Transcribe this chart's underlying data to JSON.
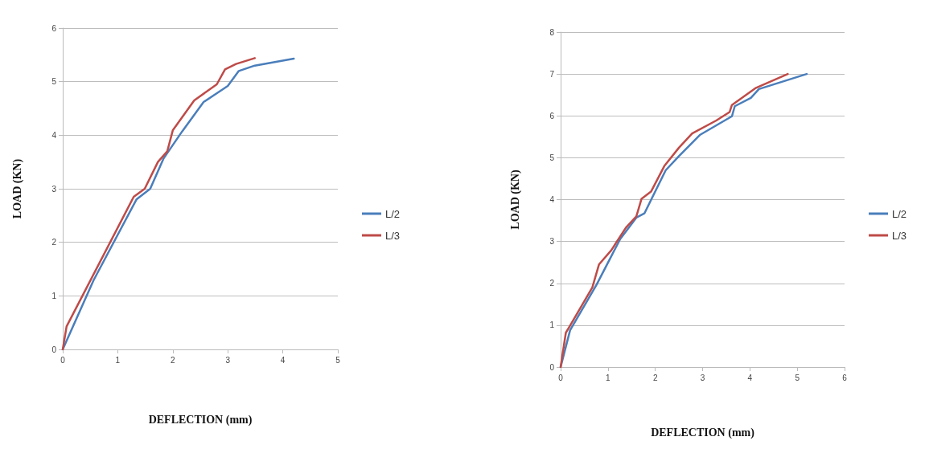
{
  "chart_data": [
    {
      "type": "line",
      "xlabel": "DEFLECTION (mm)",
      "ylabel": "LOAD (KN)",
      "xlim": [
        0,
        5
      ],
      "xticks": [
        0,
        1,
        2,
        3,
        4,
        5
      ],
      "ylim": [
        0,
        6
      ],
      "yticks": [
        0,
        1,
        2,
        3,
        4,
        5,
        6
      ],
      "grid": "y",
      "legend": "right",
      "marker": "none",
      "line_style": "solid",
      "series": [
        {
          "name": "L/2",
          "color": "#4a7ebb",
          "x": [
            0,
            0.56,
            1.34,
            1.59,
            1.83,
            2.17,
            2.56,
            3.0,
            3.2,
            3.49,
            4.2
          ],
          "values": [
            0,
            1.29,
            2.8,
            3.0,
            3.56,
            4.07,
            4.62,
            4.92,
            5.2,
            5.3,
            5.43
          ]
        },
        {
          "name": "L/3",
          "color": "#be4b48",
          "x": [
            0,
            0.07,
            1.29,
            1.49,
            1.73,
            1.9,
            2.0,
            2.39,
            2.8,
            2.95,
            3.15,
            3.49
          ],
          "values": [
            0,
            0.43,
            2.85,
            3.0,
            3.5,
            3.7,
            4.09,
            4.65,
            4.95,
            5.23,
            5.33,
            5.44
          ]
        }
      ]
    },
    {
      "type": "line",
      "xlabel": "DEFLECTION (mm)",
      "ylabel": "LOAD (KN)",
      "xlim": [
        0,
        6
      ],
      "xticks": [
        0,
        1,
        2,
        3,
        4,
        5,
        6
      ],
      "ylim": [
        0,
        8
      ],
      "yticks": [
        0,
        1,
        2,
        3,
        4,
        5,
        6,
        7,
        8
      ],
      "grid": "y",
      "legend": "right",
      "marker": "none",
      "line_style": "solid",
      "series": [
        {
          "name": "L/2",
          "color": "#4a7ebb",
          "x": [
            0,
            0.2,
            0.76,
            1.26,
            1.6,
            1.77,
            2.22,
            2.5,
            2.95,
            3.62,
            3.68,
            4.02,
            4.19,
            5.2
          ],
          "values": [
            0,
            0.88,
            1.97,
            3.06,
            3.57,
            3.67,
            4.7,
            5.04,
            5.55,
            5.99,
            6.23,
            6.43,
            6.64,
            7.0
          ]
        },
        {
          "name": "L/3",
          "color": "#be4b48",
          "x": [
            0,
            0.11,
            0.2,
            0.67,
            0.81,
            1.07,
            1.38,
            1.6,
            1.71,
            1.91,
            2.19,
            2.5,
            2.78,
            3.29,
            3.57,
            3.62,
            4.13,
            4.8
          ],
          "values": [
            0,
            0.82,
            0.99,
            1.9,
            2.45,
            2.79,
            3.33,
            3.6,
            4.02,
            4.19,
            4.8,
            5.24,
            5.58,
            5.89,
            6.09,
            6.26,
            6.67,
            7.0
          ]
        }
      ]
    }
  ]
}
